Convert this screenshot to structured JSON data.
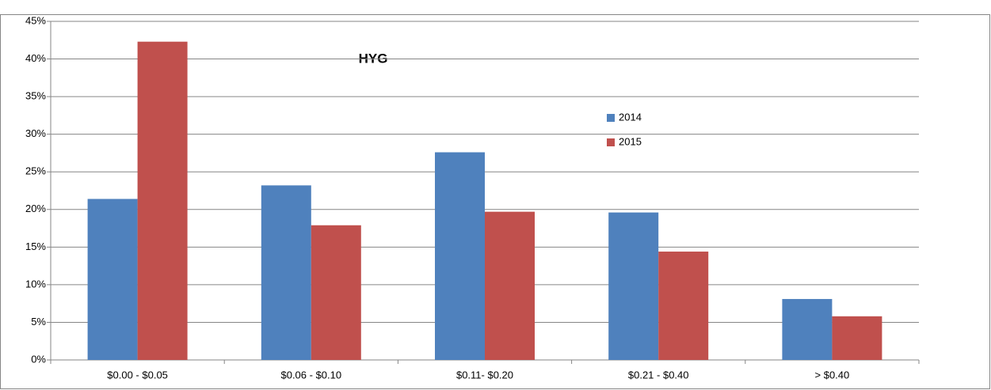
{
  "chart_data": {
    "type": "bar",
    "title": "HYG",
    "categories": [
      "$0.00 - $0.05",
      "$0.06 - $0.10",
      "$0.11- $0.20",
      "$0.21 - $0.40",
      "> $0.40"
    ],
    "series": [
      {
        "name": "2014",
        "color": "#4f81bd",
        "values": [
          21.4,
          23.2,
          27.6,
          19.6,
          8.1
        ]
      },
      {
        "name": "2015",
        "color": "#c0504d",
        "values": [
          42.3,
          17.9,
          19.7,
          14.4,
          5.8
        ]
      }
    ],
    "ylim": [
      0,
      45
    ],
    "yticks": [
      {
        "value": 0,
        "label": "0%"
      },
      {
        "value": 5,
        "label": "5%"
      },
      {
        "value": 10,
        "label": "10%"
      },
      {
        "value": 15,
        "label": "15%"
      },
      {
        "value": 20,
        "label": "20%"
      },
      {
        "value": 25,
        "label": "25%"
      },
      {
        "value": 30,
        "label": "30%"
      },
      {
        "value": 35,
        "label": "35%"
      },
      {
        "value": 40,
        "label": "40%"
      },
      {
        "value": 45,
        "label": "45%"
      }
    ],
    "grid": true
  }
}
